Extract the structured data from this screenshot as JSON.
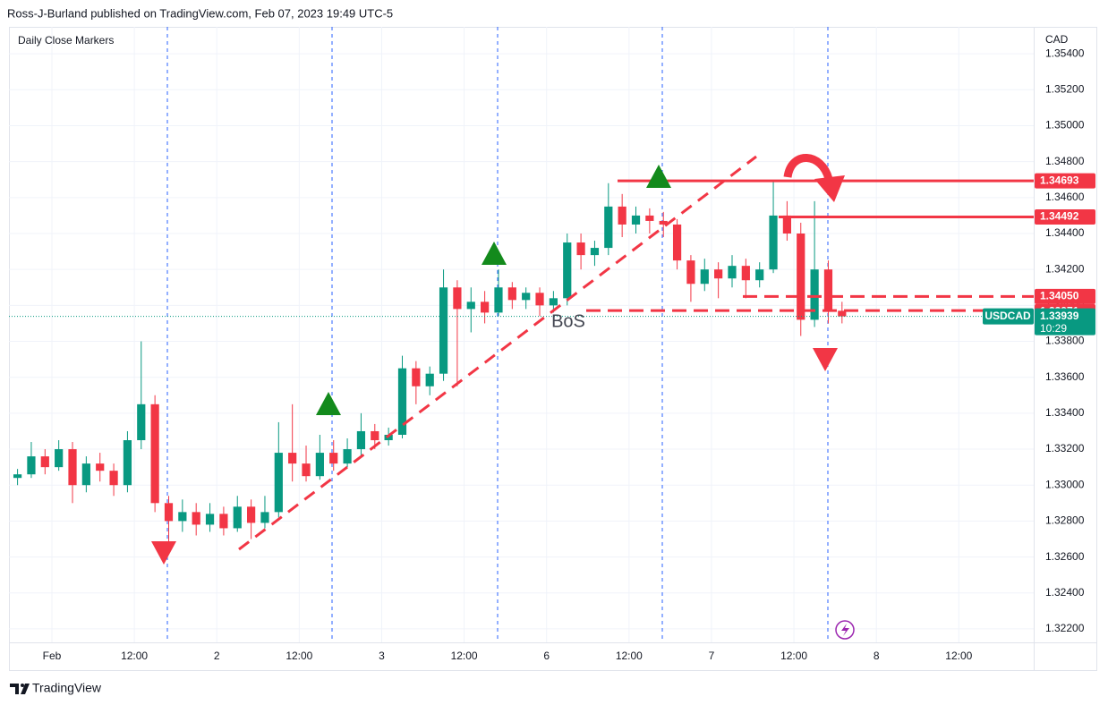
{
  "header": "Ross-J-Burland published on TradingView.com, Feb 07, 2023 19:49 UTC-5",
  "footer": "TradingView",
  "chart_data": {
    "type": "candlestick",
    "title": "Daily Close Markers",
    "currency": "CAD",
    "annotation": "BoS",
    "up_color": "#089981",
    "down_color": "#f23645",
    "grid": true,
    "x": [
      -5,
      -3,
      -1,
      1,
      3,
      5,
      7,
      9,
      11,
      13,
      15,
      17,
      19,
      21,
      23,
      25,
      27,
      29,
      31,
      33,
      35,
      37,
      39,
      41,
      43,
      45,
      47,
      49,
      51,
      53,
      55,
      57,
      59,
      61,
      63,
      65,
      67,
      69,
      71,
      73,
      75,
      77,
      79,
      81,
      83,
      85,
      87,
      89,
      91,
      93,
      95,
      97,
      99,
      101,
      103,
      105,
      107,
      109,
      111,
      113,
      115
    ],
    "open": [
      1.3304,
      1.3306,
      1.3316,
      1.331,
      1.332,
      1.33,
      1.3312,
      1.3308,
      1.33,
      1.3325,
      1.3345,
      1.329,
      1.328,
      1.3285,
      1.3278,
      1.3284,
      1.3276,
      1.3288,
      1.3279,
      1.3285,
      1.3318,
      1.3312,
      1.3305,
      1.3318,
      1.3312,
      1.332,
      1.333,
      1.3325,
      1.3328,
      1.3365,
      1.3355,
      1.3362,
      1.341,
      1.3398,
      1.3402,
      1.3396,
      1.341,
      1.3403,
      1.3407,
      1.34,
      1.3404,
      1.3435,
      1.3428,
      1.3432,
      1.3455,
      1.3445,
      1.345,
      1.3447,
      1.3445,
      1.3425,
      1.3412,
      1.342,
      1.3415,
      1.3422,
      1.3414,
      1.342,
      1.345,
      1.344,
      1.3392,
      1.342,
      1.3397
    ],
    "high": [
      1.3309,
      1.3324,
      1.332,
      1.3325,
      1.3324,
      1.3316,
      1.3318,
      1.3312,
      1.333,
      1.338,
      1.335,
      1.3294,
      1.3292,
      1.329,
      1.329,
      1.3288,
      1.3294,
      1.3292,
      1.3294,
      1.3335,
      1.3345,
      1.3322,
      1.3328,
      1.3325,
      1.3326,
      1.334,
      1.3334,
      1.3332,
      1.3372,
      1.3369,
      1.3366,
      1.342,
      1.3414,
      1.341,
      1.3408,
      1.342,
      1.3413,
      1.341,
      1.341,
      1.3408,
      1.344,
      1.344,
      1.3436,
      1.3468,
      1.3462,
      1.3455,
      1.3454,
      1.3452,
      1.3448,
      1.3428,
      1.3426,
      1.3424,
      1.3428,
      1.3426,
      1.3424,
      1.3469,
      1.3458,
      1.3446,
      1.3458,
      1.3425,
      1.3402
    ],
    "low": [
      1.33,
      1.3304,
      1.3306,
      1.3308,
      1.329,
      1.3296,
      1.3302,
      1.3294,
      1.3296,
      1.332,
      1.3285,
      1.3265,
      1.3274,
      1.3272,
      1.3274,
      1.3272,
      1.3274,
      1.327,
      1.3276,
      1.3282,
      1.3302,
      1.3302,
      1.3303,
      1.3308,
      1.331,
      1.3316,
      1.332,
      1.3322,
      1.3326,
      1.3345,
      1.335,
      1.3358,
      1.3355,
      1.3385,
      1.339,
      1.3394,
      1.3398,
      1.3398,
      1.3394,
      1.3396,
      1.34,
      1.342,
      1.3422,
      1.3428,
      1.3438,
      1.344,
      1.344,
      1.3438,
      1.342,
      1.3402,
      1.3408,
      1.3404,
      1.341,
      1.3404,
      1.341,
      1.3418,
      1.3436,
      1.3383,
      1.3388,
      1.339,
      1.339
    ],
    "close": [
      1.3306,
      1.3316,
      1.331,
      1.332,
      1.33,
      1.3312,
      1.3308,
      1.33,
      1.3325,
      1.3345,
      1.329,
      1.328,
      1.3285,
      1.3278,
      1.3284,
      1.3276,
      1.3288,
      1.3279,
      1.3285,
      1.3318,
      1.3312,
      1.3305,
      1.3318,
      1.3312,
      1.332,
      1.333,
      1.3325,
      1.3328,
      1.3365,
      1.3355,
      1.3362,
      1.341,
      1.3398,
      1.3402,
      1.3396,
      1.341,
      1.3403,
      1.3407,
      1.34,
      1.3404,
      1.3435,
      1.3428,
      1.3432,
      1.3455,
      1.3445,
      1.345,
      1.3447,
      1.3445,
      1.3425,
      1.3412,
      1.342,
      1.3415,
      1.3422,
      1.3414,
      1.342,
      1.345,
      1.344,
      1.3392,
      1.342,
      1.3397,
      1.33939
    ],
    "xlim": [
      -6.25,
      142.9
    ],
    "xticks": [
      {
        "value": 0,
        "label": "Feb"
      },
      {
        "value": 12,
        "label": "12:00"
      },
      {
        "value": 24,
        "label": "2"
      },
      {
        "value": 36,
        "label": "12:00"
      },
      {
        "value": 48,
        "label": "3"
      },
      {
        "value": 60,
        "label": "12:00"
      },
      {
        "value": 72,
        "label": "6"
      },
      {
        "value": 84,
        "label": "12:00"
      },
      {
        "value": 96,
        "label": "7"
      },
      {
        "value": 108,
        "label": "12:00"
      },
      {
        "value": 120,
        "label": "8"
      },
      {
        "value": 132,
        "label": "12:00"
      }
    ],
    "ylim": [
      1.32125,
      1.3555
    ],
    "yticks": [
      {
        "value": 1.354,
        "label": "1.35400"
      },
      {
        "value": 1.352,
        "label": "1.35200"
      },
      {
        "value": 1.35,
        "label": "1.35000"
      },
      {
        "value": 1.348,
        "label": "1.34800"
      },
      {
        "value": 1.346,
        "label": "1.34600"
      },
      {
        "value": 1.344,
        "label": "1.34400"
      },
      {
        "value": 1.342,
        "label": "1.34200"
      },
      {
        "value": 1.34,
        "label": "1.34000"
      },
      {
        "value": 1.338,
        "label": "1.33800"
      },
      {
        "value": 1.336,
        "label": "1.33600"
      },
      {
        "value": 1.334,
        "label": "1.33400"
      },
      {
        "value": 1.332,
        "label": "1.33200"
      },
      {
        "value": 1.33,
        "label": "1.33000"
      },
      {
        "value": 1.328,
        "label": "1.32800"
      },
      {
        "value": 1.326,
        "label": "1.32600"
      },
      {
        "value": 1.324,
        "label": "1.32400"
      },
      {
        "value": 1.322,
        "label": "1.32200"
      }
    ],
    "levels": [
      {
        "value": 1.34693,
        "style": "solid",
        "color": "#f23645"
      },
      {
        "value": 1.34492,
        "style": "solid",
        "color": "#f23645"
      },
      {
        "value": 1.3405,
        "label": "1.34050",
        "style": "dashed",
        "color": "#f23645"
      },
      {
        "value": 1.33971,
        "style": "dashed",
        "color": "#f23645"
      }
    ],
    "last": {
      "symbol": "USDCAD",
      "value": 1.33939,
      "countdown": "10:29",
      "color": "#089981"
    }
  }
}
